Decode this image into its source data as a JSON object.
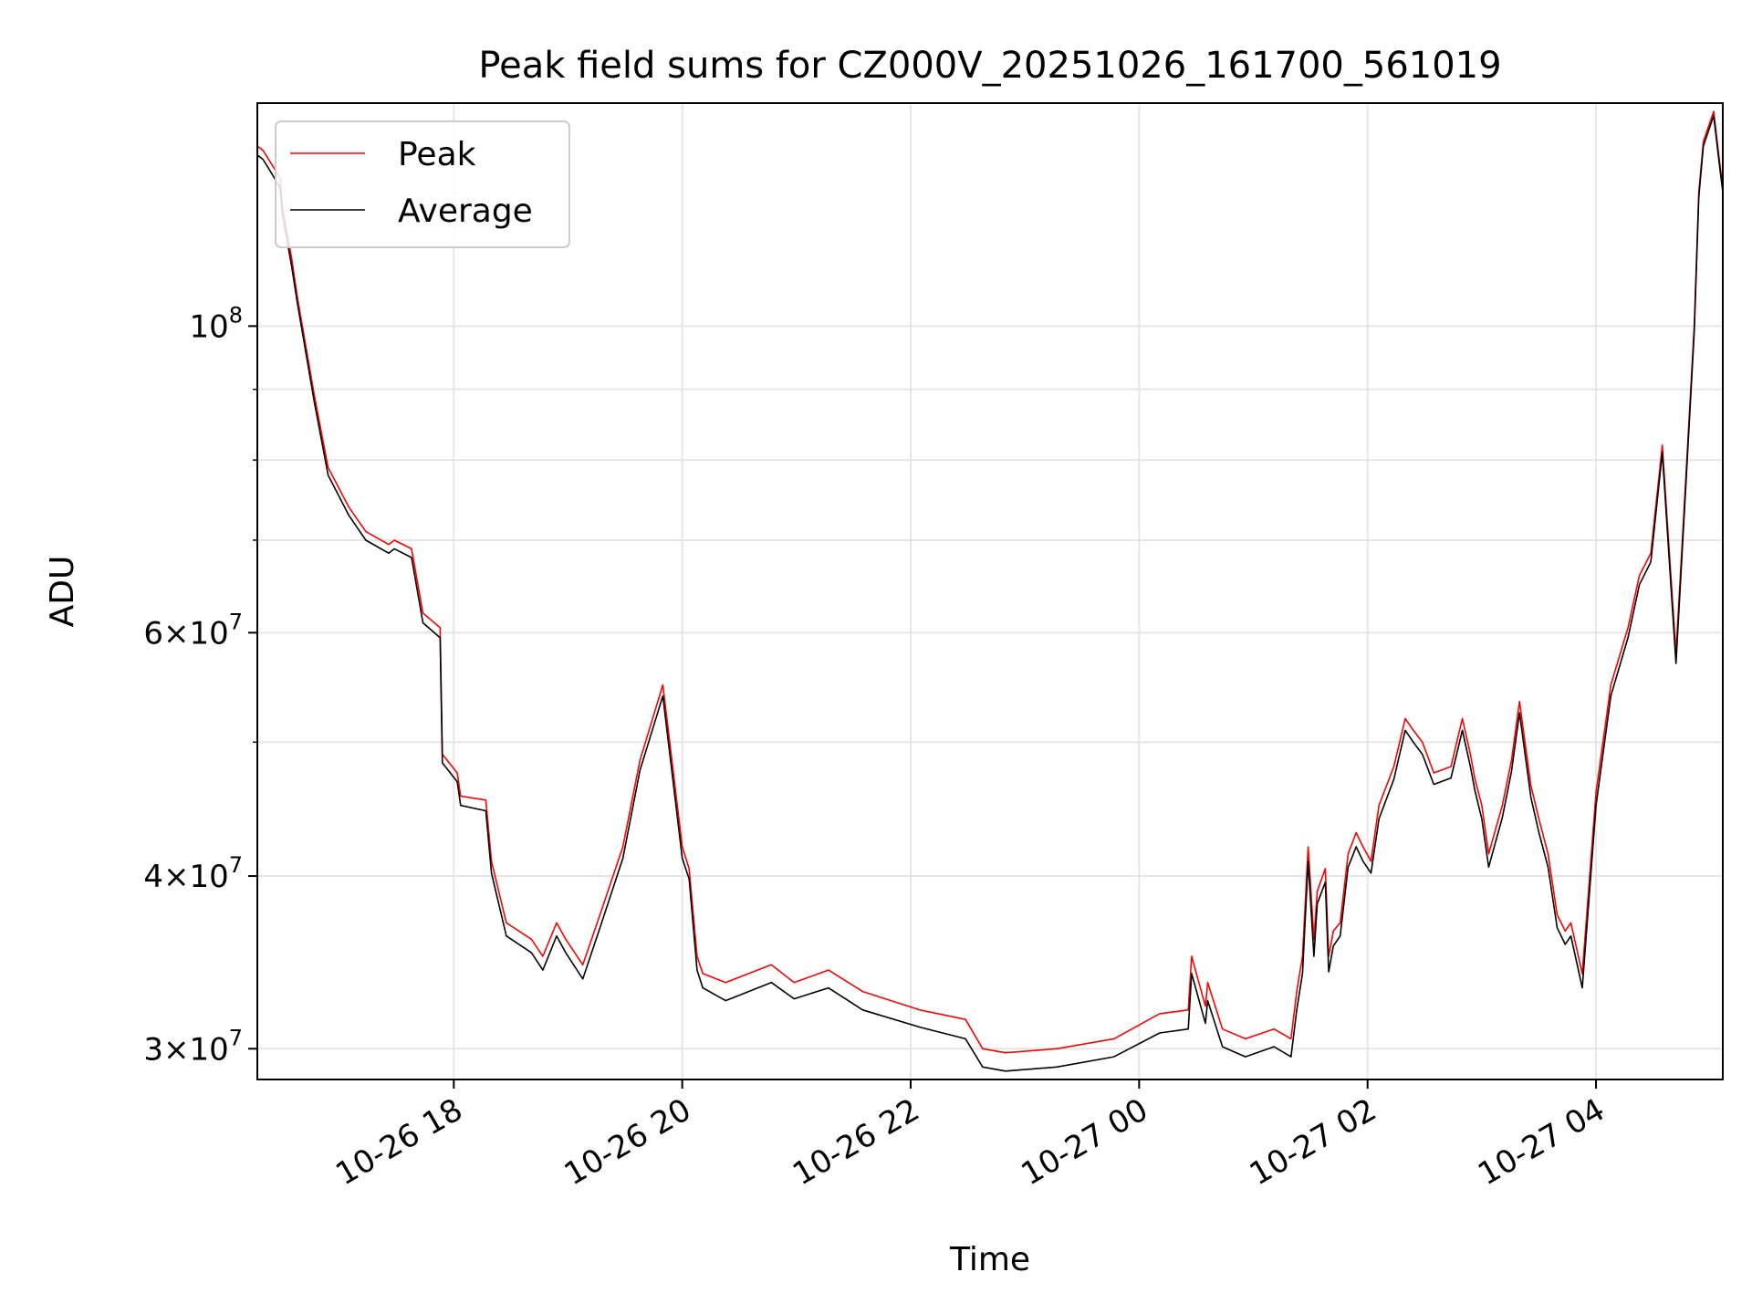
{
  "chart_data": {
    "type": "line",
    "title": "Peak field sums for CZ000V_20251026_161700_561019",
    "xlabel": "Time",
    "ylabel": "ADU",
    "yscale": "log",
    "grid": true,
    "legend_position": "top-left",
    "x_unit": "hours since 10-26 16:17",
    "xlim": [
      0.0,
      12.83
    ],
    "ylim": [
      28500000,
      145000000
    ],
    "x_ticks": [
      {
        "value": 1.72,
        "label": "10-26 18"
      },
      {
        "value": 3.72,
        "label": "10-26 20"
      },
      {
        "value": 5.72,
        "label": "10-26 22"
      },
      {
        "value": 7.72,
        "label": "10-27 00"
      },
      {
        "value": 9.72,
        "label": "10-27 02"
      },
      {
        "value": 11.72,
        "label": "10-27 04"
      }
    ],
    "y_ticks": [
      {
        "value": 30000000,
        "mantissa": "3",
        "exponent": "7"
      },
      {
        "value": 40000000,
        "mantissa": "4",
        "exponent": "7"
      },
      {
        "value": 60000000,
        "mantissa": "6",
        "exponent": "7"
      },
      {
        "value": 100000000,
        "mantissa": "",
        "exponent": "8"
      }
    ],
    "y_minor_ticks": [
      50000000,
      70000000,
      80000000,
      90000000
    ],
    "tick_times_label": "×10",
    "tick_base_label": "10",
    "series": [
      {
        "name": "Peak",
        "color": "#ff0000",
        "x": [
          0.0,
          0.05,
          0.1,
          0.2,
          0.22,
          0.3,
          0.35,
          0.5,
          0.62,
          0.8,
          0.95,
          1.15,
          1.2,
          1.35,
          1.45,
          1.6,
          1.62,
          1.75,
          1.78,
          2.0,
          2.05,
          2.18,
          2.4,
          2.5,
          2.62,
          2.7,
          2.85,
          3.0,
          3.2,
          3.35,
          3.55,
          3.72,
          3.78,
          3.85,
          3.9,
          4.1,
          4.5,
          4.7,
          5.0,
          5.3,
          5.8,
          6.2,
          6.35,
          6.55,
          7.0,
          7.5,
          7.9,
          8.15,
          8.18,
          8.3,
          8.32,
          8.45,
          8.65,
          8.9,
          9.05,
          9.1,
          9.15,
          9.2,
          9.25,
          9.28,
          9.35,
          9.38,
          9.42,
          9.48,
          9.55,
          9.62,
          9.68,
          9.75,
          9.82,
          9.95,
          10.05,
          10.12,
          10.2,
          10.3,
          10.45,
          10.55,
          10.62,
          10.66,
          10.72,
          10.78,
          10.9,
          10.98,
          11.05,
          11.15,
          11.22,
          11.3,
          11.38,
          11.45,
          11.5,
          11.6,
          11.72,
          11.85,
          12.0,
          12.1,
          12.2,
          12.3,
          12.35,
          12.42,
          12.5,
          12.58,
          12.62,
          12.66,
          12.75,
          12.8,
          12.83
        ],
        "y": [
          135000000,
          134000000,
          132000000,
          128000000,
          122000000,
          112000000,
          105000000,
          89000000,
          79000000,
          74000000,
          71000000,
          69500000,
          70000000,
          69000000,
          62000000,
          60500000,
          49000000,
          47500000,
          45700000,
          45400000,
          41000000,
          37000000,
          36000000,
          35000000,
          37000000,
          36000000,
          34500000,
          37500000,
          42000000,
          48500000,
          55000000,
          42000000,
          40500000,
          35000000,
          34000000,
          33500000,
          34500000,
          33500000,
          34200000,
          33000000,
          32000000,
          31500000,
          30000000,
          29800000,
          30000000,
          30500000,
          31800000,
          32000000,
          35000000,
          32200000,
          33500000,
          31000000,
          30500000,
          31000000,
          30500000,
          33000000,
          35000000,
          42000000,
          36000000,
          39000000,
          40500000,
          35000000,
          36500000,
          37000000,
          41500000,
          43000000,
          42000000,
          41000000,
          45000000,
          48000000,
          52000000,
          51000000,
          50000000,
          47500000,
          48000000,
          52000000,
          49000000,
          47000000,
          45000000,
          41500000,
          45000000,
          48500000,
          53500000,
          46500000,
          44000000,
          41500000,
          37500000,
          36500000,
          37000000,
          34000000,
          46000000,
          55000000,
          60500000,
          66000000,
          68500000,
          82000000,
          71000000,
          58000000,
          76000000,
          100000000,
          125000000,
          136000000,
          143000000,
          132000000,
          126000000
        ]
      },
      {
        "name": "Average",
        "color": "#000000",
        "x": [
          0.0,
          0.05,
          0.1,
          0.2,
          0.22,
          0.3,
          0.35,
          0.5,
          0.62,
          0.8,
          0.95,
          1.15,
          1.2,
          1.35,
          1.45,
          1.6,
          1.62,
          1.75,
          1.78,
          2.0,
          2.05,
          2.18,
          2.4,
          2.5,
          2.62,
          2.7,
          2.85,
          3.0,
          3.2,
          3.35,
          3.55,
          3.72,
          3.78,
          3.85,
          3.9,
          4.1,
          4.5,
          4.7,
          5.0,
          5.3,
          5.8,
          6.2,
          6.35,
          6.55,
          7.0,
          7.5,
          7.9,
          8.15,
          8.18,
          8.3,
          8.32,
          8.45,
          8.65,
          8.9,
          9.05,
          9.1,
          9.15,
          9.2,
          9.25,
          9.28,
          9.35,
          9.38,
          9.42,
          9.48,
          9.55,
          9.62,
          9.68,
          9.75,
          9.82,
          9.95,
          10.05,
          10.12,
          10.2,
          10.3,
          10.45,
          10.55,
          10.62,
          10.66,
          10.72,
          10.78,
          10.9,
          10.98,
          11.05,
          11.15,
          11.22,
          11.3,
          11.38,
          11.45,
          11.5,
          11.6,
          11.72,
          11.85,
          12.0,
          12.1,
          12.2,
          12.3,
          12.35,
          12.42,
          12.5,
          12.58,
          12.62,
          12.66,
          12.75,
          12.8,
          12.83
        ],
        "y": [
          133000000,
          132000000,
          130000000,
          126000000,
          120500000,
          110500000,
          104000000,
          88000000,
          78000000,
          73000000,
          70000000,
          68500000,
          69000000,
          68000000,
          61000000,
          59500000,
          48300000,
          46800000,
          45000000,
          44600000,
          40200000,
          36200000,
          35200000,
          34200000,
          36200000,
          35200000,
          33700000,
          36700000,
          41200000,
          47700000,
          54000000,
          41200000,
          39800000,
          34200000,
          33200000,
          32500000,
          33500000,
          32600000,
          33200000,
          32000000,
          31100000,
          30500000,
          29100000,
          28900000,
          29100000,
          29600000,
          30800000,
          31000000,
          34000000,
          31300000,
          32500000,
          30100000,
          29600000,
          30100000,
          29600000,
          32000000,
          34000000,
          41000000,
          35000000,
          38200000,
          39600000,
          34100000,
          35600000,
          36200000,
          40600000,
          42000000,
          41000000,
          40200000,
          44000000,
          47000000,
          51000000,
          50000000,
          49000000,
          46600000,
          47100000,
          51000000,
          48000000,
          46100000,
          44000000,
          40600000,
          44100000,
          47600000,
          52500000,
          45600000,
          43000000,
          40600000,
          36700000,
          35700000,
          36200000,
          33200000,
          45000000,
          54000000,
          59500000,
          65000000,
          67500000,
          81000000,
          70000000,
          57000000,
          75000000,
          99000000,
          124000000,
          135000000,
          142000000,
          131000000,
          125000000
        ]
      }
    ]
  }
}
